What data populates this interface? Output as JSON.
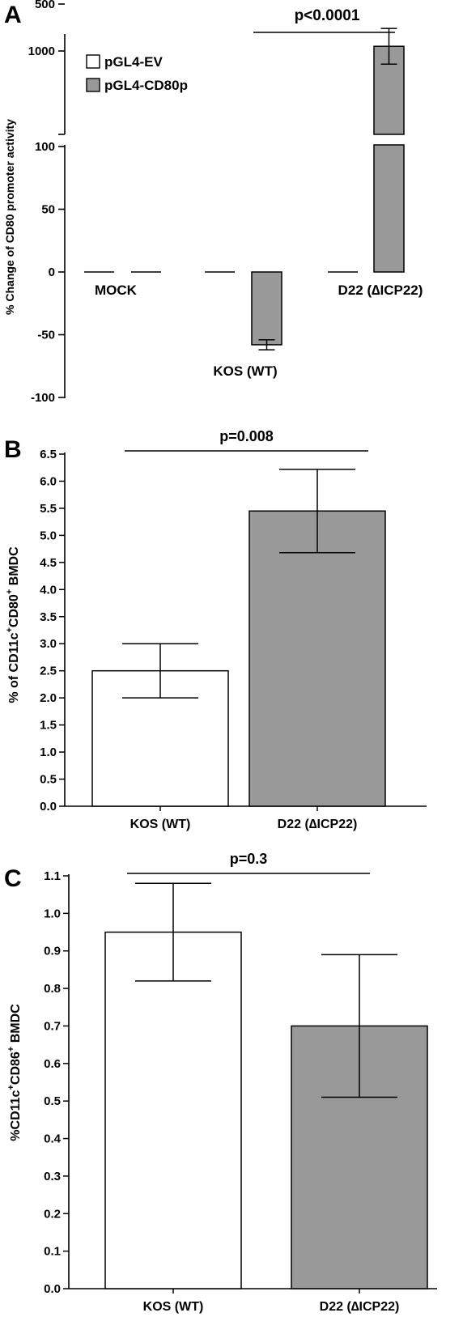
{
  "colors": {
    "ev": "#ffffff",
    "cd80p": "#999999",
    "gray_bar": "#999999",
    "white_bar": "#ffffff",
    "ink": "#000000"
  },
  "chart_data": [
    {
      "panel": "A",
      "type": "bar",
      "ylabel": "% Change of CD80 promoter activity",
      "legend": [
        "pGL4-EV",
        "pGL4-CD80p"
      ],
      "legend_position": "top-left",
      "broken_axis": true,
      "y_ticks_lower": [
        "-100",
        "-50",
        "0",
        "50",
        "100"
      ],
      "y_ticks_upper": [
        "500",
        "1000"
      ],
      "ylim_lower": [
        -100,
        100
      ],
      "ylim_upper": [
        100,
        1100
      ],
      "groups": [
        "MOCK",
        "KOS (WT)",
        "D22 (∆ICP22)"
      ],
      "series": [
        {
          "name": "pGL4-EV",
          "values": [
            0,
            0,
            0
          ],
          "errors": [
            0,
            0,
            0
          ]
        },
        {
          "name": "pGL4-CD80p",
          "values": [
            0,
            -58,
            950
          ],
          "errors": [
            0,
            4,
            190
          ]
        }
      ],
      "annotation": "p<0.0001",
      "grid": false
    },
    {
      "panel": "B",
      "type": "bar",
      "ylabel_parts": [
        "% of CD11c",
        "+",
        "CD80",
        "+",
        " BMDC"
      ],
      "categories": [
        "KOS (WT)",
        "D22 (∆ICP22)"
      ],
      "values": [
        2.5,
        5.45
      ],
      "errors": [
        0.5,
        0.77
      ],
      "y_ticks": [
        "0.0",
        "0.5",
        "1.0",
        "1.5",
        "2.0",
        "2.5",
        "3.0",
        "3.5",
        "4.0",
        "4.5",
        "5.0",
        "5.5",
        "6.0",
        "6.5"
      ],
      "ylim": [
        0,
        6.5
      ],
      "annotation": "p=0.008",
      "grid": false
    },
    {
      "panel": "C",
      "type": "bar",
      "ylabel_parts": [
        "%CD11c",
        "+",
        "CD86",
        "+",
        " BMDC"
      ],
      "categories": [
        "KOS (WT)",
        "D22 (∆ICP22)"
      ],
      "values": [
        0.95,
        0.7
      ],
      "errors": [
        0.13,
        0.19
      ],
      "y_ticks": [
        "0.0",
        "0.1",
        "0.2",
        "0.3",
        "0.4",
        "0.5",
        "0.6",
        "0.7",
        "0.8",
        "0.9",
        "1.0",
        "1.1"
      ],
      "ylim": [
        0,
        1.1
      ],
      "annotation": "p=0.3",
      "grid": false
    }
  ],
  "panels": {
    "a": "A",
    "b": "B",
    "c": "C"
  }
}
